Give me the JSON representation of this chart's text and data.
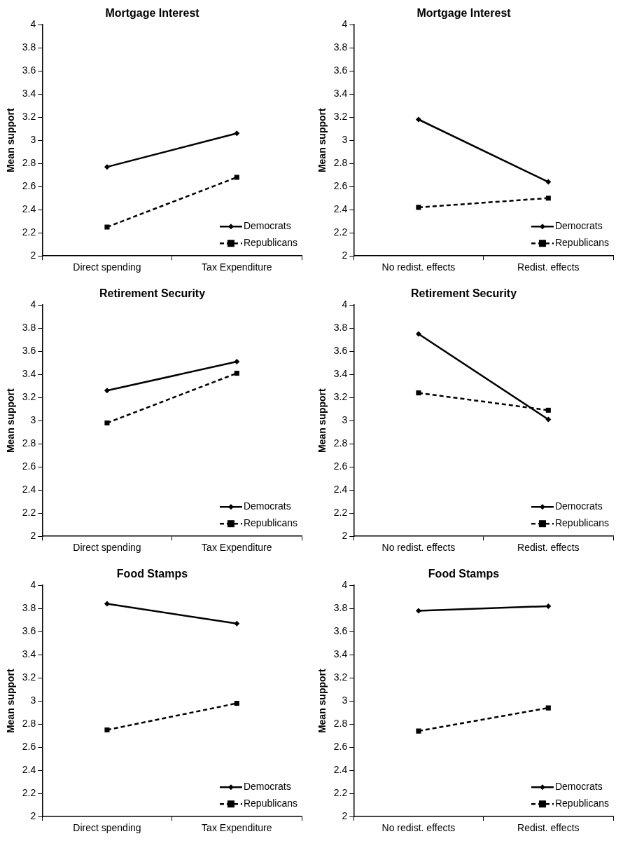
{
  "chart_data": [
    {
      "type": "line",
      "title": "Mortgage Interest",
      "ylabel": "Mean support",
      "categories": [
        "Direct spending",
        "Tax Expenditure"
      ],
      "ylim": [
        2,
        4
      ],
      "yticks": [
        2,
        2.2,
        2.4,
        2.6,
        2.8,
        3,
        3.2,
        3.4,
        3.6,
        3.8,
        4
      ],
      "legend": "bottom right",
      "series": [
        {
          "name": "Democrats",
          "color": "#000000",
          "marker": "diamond",
          "line_style": "solid",
          "values": [
            2.77,
            3.06
          ]
        },
        {
          "name": "Republicans",
          "color": "#000000",
          "marker": "square",
          "line_style": "dashed",
          "values": [
            2.25,
            2.68
          ]
        }
      ]
    },
    {
      "type": "line",
      "title": "Mortgage Interest",
      "ylabel": "Mean support",
      "categories": [
        "No redist. effects",
        "Redist. effects"
      ],
      "ylim": [
        2,
        4
      ],
      "yticks": [
        2,
        2.2,
        2.4,
        2.6,
        2.8,
        3,
        3.2,
        3.4,
        3.6,
        3.8,
        4
      ],
      "legend": "bottom right",
      "series": [
        {
          "name": "Democrats",
          "color": "#000000",
          "marker": "diamond",
          "line_style": "solid",
          "values": [
            3.18,
            2.64
          ]
        },
        {
          "name": "Republicans",
          "color": "#000000",
          "marker": "square",
          "line_style": "dashed",
          "values": [
            2.42,
            2.5
          ]
        }
      ]
    },
    {
      "type": "line",
      "title": "Retirement Security",
      "ylabel": "Mean support",
      "categories": [
        "Direct spending",
        "Tax Expenditure"
      ],
      "ylim": [
        2,
        4
      ],
      "yticks": [
        2,
        2.2,
        2.4,
        2.6,
        2.8,
        3,
        3.2,
        3.4,
        3.6,
        3.8,
        4
      ],
      "legend": "bottom right",
      "series": [
        {
          "name": "Democrats",
          "color": "#000000",
          "marker": "diamond",
          "line_style": "solid",
          "values": [
            3.26,
            3.51
          ]
        },
        {
          "name": "Republicans",
          "color": "#000000",
          "marker": "square",
          "line_style": "dashed",
          "values": [
            2.98,
            3.41
          ]
        }
      ]
    },
    {
      "type": "line",
      "title": "Retirement Security",
      "ylabel": "Mean support",
      "categories": [
        "No redist. effects",
        "Redist. effects"
      ],
      "ylim": [
        2,
        4
      ],
      "yticks": [
        2,
        2.2,
        2.4,
        2.6,
        2.8,
        3,
        3.2,
        3.4,
        3.6,
        3.8,
        4
      ],
      "legend": "bottom right",
      "series": [
        {
          "name": "Democrats",
          "color": "#000000",
          "marker": "diamond",
          "line_style": "solid",
          "values": [
            3.75,
            3.01
          ]
        },
        {
          "name": "Republicans",
          "color": "#000000",
          "marker": "square",
          "line_style": "dashed",
          "values": [
            3.24,
            3.09
          ]
        }
      ]
    },
    {
      "type": "line",
      "title": "Food Stamps",
      "ylabel": "Mean support",
      "categories": [
        "Direct spending",
        "Tax Expenditure"
      ],
      "ylim": [
        2,
        4
      ],
      "yticks": [
        2,
        2.2,
        2.4,
        2.6,
        2.8,
        3,
        3.2,
        3.4,
        3.6,
        3.8,
        4
      ],
      "legend": "bottom right",
      "series": [
        {
          "name": "Democrats",
          "color": "#000000",
          "marker": "diamond",
          "line_style": "solid",
          "values": [
            3.84,
            3.67
          ]
        },
        {
          "name": "Republicans",
          "color": "#000000",
          "marker": "square",
          "line_style": "dashed",
          "values": [
            2.75,
            2.98
          ]
        }
      ]
    },
    {
      "type": "line",
      "title": "Food Stamps",
      "ylabel": "Mean support",
      "categories": [
        "No redist. effects",
        "Redist. effects"
      ],
      "ylim": [
        2,
        4
      ],
      "yticks": [
        2,
        2.2,
        2.4,
        2.6,
        2.8,
        3,
        3.2,
        3.4,
        3.6,
        3.8,
        4
      ],
      "legend": "bottom right",
      "series": [
        {
          "name": "Democrats",
          "color": "#000000",
          "marker": "diamond",
          "line_style": "solid",
          "values": [
            3.78,
            3.82
          ]
        },
        {
          "name": "Republicans",
          "color": "#000000",
          "marker": "square",
          "line_style": "dashed",
          "values": [
            2.74,
            2.94
          ]
        }
      ]
    }
  ]
}
